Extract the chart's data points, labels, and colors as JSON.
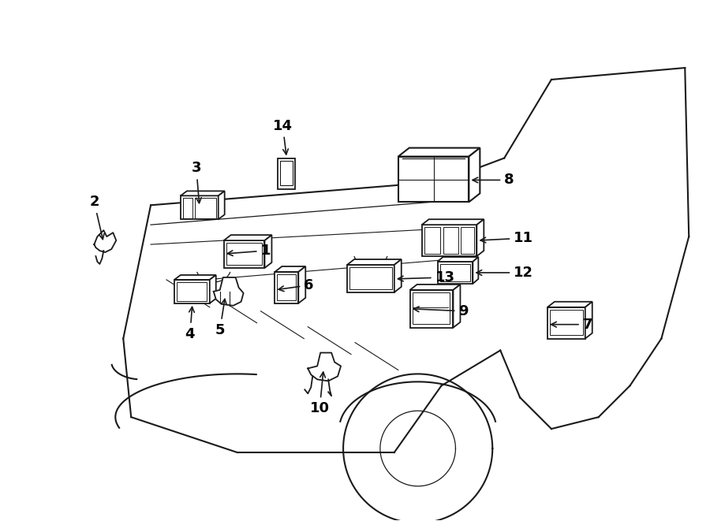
{
  "bg_color": "#ffffff",
  "line_color": "#1a1a1a",
  "text_color": "#000000",
  "fig_width": 9.0,
  "fig_height": 6.61
}
